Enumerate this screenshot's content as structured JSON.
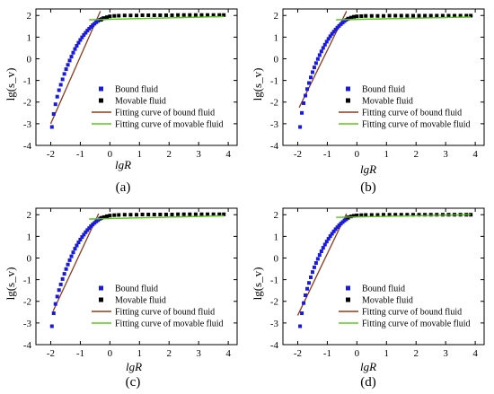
{
  "chart_data": [
    {
      "panel": "(a)",
      "type": "scatter",
      "xlabel": "lgR",
      "ylabel": "lg(s_v)",
      "xlim": [
        -2.5,
        4.3
      ],
      "ylim": [
        -4,
        2.3
      ],
      "x_ticks": [
        "-2",
        "-1",
        "0",
        "1",
        "2",
        "3",
        "4"
      ],
      "y_ticks": [
        "-4",
        "-3",
        "-2",
        "-1",
        "0",
        "1",
        "2"
      ],
      "legend_position": "lower-right",
      "series": [
        {
          "name": "Bound fluid",
          "marker": "square",
          "color": "#1a1adb",
          "x": [
            -1.96,
            -1.9,
            -1.84,
            -1.78,
            -1.72,
            -1.66,
            -1.6,
            -1.54,
            -1.48,
            -1.42,
            -1.36,
            -1.3,
            -1.24,
            -1.18,
            -1.12,
            -1.06,
            -1.0,
            -0.94,
            -0.88,
            -0.82,
            -0.76,
            -0.7,
            -0.64,
            -0.58,
            -0.52,
            -0.46,
            -0.4,
            -0.34,
            -0.28,
            -0.22
          ],
          "y": [
            -3.15,
            -2.55,
            -2.1,
            -1.75,
            -1.45,
            -1.2,
            -0.95,
            -0.7,
            -0.48,
            -0.28,
            -0.08,
            0.1,
            0.28,
            0.45,
            0.6,
            0.74,
            0.87,
            0.99,
            1.1,
            1.2,
            1.3,
            1.39,
            1.47,
            1.55,
            1.62,
            1.69,
            1.75,
            1.8,
            1.84,
            1.88
          ]
        },
        {
          "name": "Movable fluid",
          "marker": "square",
          "color": "#000000",
          "x": [
            -0.3,
            -0.2,
            -0.1,
            0.0,
            0.15,
            0.3,
            0.5,
            0.7,
            0.9,
            1.1,
            1.3,
            1.5,
            1.7,
            1.9,
            2.1,
            2.3,
            2.5,
            2.7,
            2.9,
            3.1,
            3.3,
            3.5,
            3.7,
            3.85
          ],
          "y": [
            1.8,
            1.87,
            1.92,
            1.96,
            1.98,
            1.99,
            2.0,
            2.0,
            2.0,
            2.01,
            2.01,
            2.01,
            2.01,
            2.01,
            2.01,
            2.02,
            2.02,
            2.02,
            2.02,
            2.02,
            2.02,
            2.02,
            2.02,
            2.02
          ]
        },
        {
          "name": "Fitting curve of bound fluid",
          "type": "line",
          "color": "#8b3a1a",
          "x": [
            -2.0,
            -0.32
          ],
          "y": [
            -3.0,
            2.2
          ]
        },
        {
          "name": "Fitting curve of movable fluid",
          "type": "line",
          "color": "#5ec81f",
          "x": [
            -0.7,
            3.85
          ],
          "y": [
            1.8,
            1.95
          ]
        }
      ]
    },
    {
      "panel": "(b)",
      "type": "scatter",
      "xlabel": "lgR",
      "ylabel": "lg(s_v)",
      "xlim": [
        -2.5,
        4.3
      ],
      "ylim": [
        -4,
        2.3
      ],
      "x_ticks": [
        "-2",
        "-1",
        "0",
        "1",
        "2",
        "3",
        "4"
      ],
      "y_ticks": [
        "-4",
        "-3",
        "-2",
        "-1",
        "0",
        "1",
        "2"
      ],
      "legend_position": "lower-right",
      "series": [
        {
          "name": "Bound fluid",
          "marker": "square",
          "color": "#1a1adb",
          "x": [
            -1.92,
            -1.86,
            -1.8,
            -1.74,
            -1.68,
            -1.62,
            -1.56,
            -1.5,
            -1.44,
            -1.38,
            -1.32,
            -1.26,
            -1.2,
            -1.14,
            -1.08,
            -1.02,
            -0.96,
            -0.9,
            -0.84,
            -0.78,
            -0.72,
            -0.66,
            -0.6,
            -0.54,
            -0.48,
            -0.42,
            -0.36,
            -0.3
          ],
          "y": [
            -3.15,
            -2.5,
            -2.05,
            -1.7,
            -1.4,
            -1.12,
            -0.86,
            -0.62,
            -0.4,
            -0.2,
            -0.01,
            0.17,
            0.34,
            0.5,
            0.65,
            0.79,
            0.92,
            1.04,
            1.15,
            1.25,
            1.35,
            1.44,
            1.52,
            1.6,
            1.67,
            1.74,
            1.8,
            1.85
          ]
        },
        {
          "name": "Movable fluid",
          "marker": "square",
          "color": "#000000",
          "x": [
            -0.3,
            -0.2,
            -0.1,
            0.0,
            0.15,
            0.3,
            0.5,
            0.7,
            0.9,
            1.1,
            1.3,
            1.5,
            1.7,
            1.9,
            2.1,
            2.3,
            2.5,
            2.7,
            2.9,
            3.1,
            3.3,
            3.5,
            3.7,
            3.85
          ],
          "y": [
            1.85,
            1.9,
            1.94,
            1.96,
            1.97,
            1.98,
            1.98,
            1.98,
            1.98,
            1.99,
            1.99,
            1.99,
            1.99,
            1.99,
            1.99,
            1.99,
            1.99,
            1.99,
            1.99,
            1.99,
            1.99,
            1.99,
            1.99,
            1.99
          ]
        },
        {
          "name": "Fitting curve of bound fluid",
          "type": "line",
          "color": "#8b3a1a",
          "x": [
            -1.95,
            -0.35
          ],
          "y": [
            -2.25,
            2.2
          ]
        },
        {
          "name": "Fitting curve of movable fluid",
          "type": "line",
          "color": "#5ec81f",
          "x": [
            -0.7,
            3.85
          ],
          "y": [
            1.8,
            1.93
          ]
        }
      ]
    },
    {
      "panel": "(c)",
      "type": "scatter",
      "xlabel": "lgR",
      "ylabel": "lg(s_v)",
      "xlim": [
        -2.5,
        4.3
      ],
      "ylim": [
        -4,
        2.3
      ],
      "x_ticks": [
        "-2",
        "-1",
        "0",
        "1",
        "2",
        "3",
        "4"
      ],
      "y_ticks": [
        "-4",
        "-3",
        "-2",
        "-1",
        "0",
        "1",
        "2"
      ],
      "legend_position": "lower-right",
      "series": [
        {
          "name": "Bound fluid",
          "marker": "square",
          "color": "#1a1adb",
          "x": [
            -1.96,
            -1.9,
            -1.84,
            -1.78,
            -1.72,
            -1.66,
            -1.6,
            -1.54,
            -1.48,
            -1.42,
            -1.36,
            -1.3,
            -1.24,
            -1.18,
            -1.12,
            -1.06,
            -1.0,
            -0.94,
            -0.88,
            -0.82,
            -0.76,
            -0.7,
            -0.64,
            -0.58,
            -0.52,
            -0.46,
            -0.4,
            -0.34,
            -0.28
          ],
          "y": [
            -3.15,
            -2.55,
            -2.12,
            -1.78,
            -1.48,
            -1.22,
            -0.97,
            -0.73,
            -0.51,
            -0.3,
            -0.1,
            0.08,
            0.26,
            0.43,
            0.58,
            0.72,
            0.85,
            0.97,
            1.08,
            1.19,
            1.29,
            1.38,
            1.47,
            1.55,
            1.62,
            1.69,
            1.75,
            1.81,
            1.86
          ]
        },
        {
          "name": "Movable fluid",
          "marker": "square",
          "color": "#000000",
          "x": [
            -0.3,
            -0.2,
            -0.1,
            0.0,
            0.15,
            0.3,
            0.5,
            0.7,
            0.9,
            1.1,
            1.3,
            1.5,
            1.7,
            1.9,
            2.1,
            2.3,
            2.5,
            2.7,
            2.9,
            3.1,
            3.3,
            3.5,
            3.7,
            3.85
          ],
          "y": [
            1.84,
            1.89,
            1.93,
            1.96,
            1.98,
            1.99,
            2.0,
            2.0,
            2.0,
            2.01,
            2.01,
            2.01,
            2.01,
            2.01,
            2.01,
            2.02,
            2.02,
            2.02,
            2.02,
            2.02,
            2.02,
            2.02,
            2.02,
            2.02
          ]
        },
        {
          "name": "Fitting curve of bound fluid",
          "type": "line",
          "color": "#8b3a1a",
          "x": [
            -1.92,
            -0.38
          ],
          "y": [
            -2.45,
            2.05
          ]
        },
        {
          "name": "Fitting curve of movable fluid",
          "type": "line",
          "color": "#5ec81f",
          "x": [
            -0.7,
            3.85
          ],
          "y": [
            1.8,
            1.95
          ]
        }
      ]
    },
    {
      "panel": "(d)",
      "type": "scatter",
      "xlabel": "lgR",
      "ylabel": "lg(s_v)",
      "xlim": [
        -2.5,
        4.3
      ],
      "ylim": [
        -4,
        2.3
      ],
      "x_ticks": [
        "-2",
        "-1",
        "0",
        "1",
        "2",
        "3",
        "4"
      ],
      "y_ticks": [
        "-4",
        "-3",
        "-2",
        "-1",
        "0",
        "1",
        "2"
      ],
      "legend_position": "lower-right",
      "series": [
        {
          "name": "Bound fluid",
          "marker": "square",
          "color": "#1a1adb",
          "x": [
            -1.92,
            -1.86,
            -1.8,
            -1.74,
            -1.68,
            -1.62,
            -1.56,
            -1.5,
            -1.44,
            -1.38,
            -1.32,
            -1.26,
            -1.2,
            -1.14,
            -1.08,
            -1.02,
            -0.96,
            -0.9,
            -0.84,
            -0.78,
            -0.72,
            -0.66,
            -0.6,
            -0.54,
            -0.48,
            -0.42,
            -0.36,
            -0.3
          ],
          "y": [
            -3.15,
            -2.55,
            -2.08,
            -1.72,
            -1.42,
            -1.15,
            -0.89,
            -0.65,
            -0.43,
            -0.23,
            -0.04,
            0.14,
            0.31,
            0.47,
            0.62,
            0.76,
            0.89,
            1.01,
            1.12,
            1.23,
            1.33,
            1.42,
            1.51,
            1.59,
            1.66,
            1.73,
            1.79,
            1.85
          ]
        },
        {
          "name": "Movable fluid",
          "marker": "square",
          "color": "#000000",
          "x": [
            -0.3,
            -0.2,
            -0.1,
            0.0,
            0.15,
            0.3,
            0.5,
            0.7,
            0.9,
            1.1,
            1.3,
            1.5,
            1.7,
            1.9,
            2.1,
            2.3,
            2.5,
            2.7,
            2.9,
            3.1,
            3.3,
            3.5,
            3.7,
            3.85
          ],
          "y": [
            1.88,
            1.92,
            1.95,
            1.97,
            1.98,
            1.99,
            1.99,
            1.99,
            2.0,
            2.0,
            2.0,
            2.0,
            2.0,
            2.0,
            2.0,
            2.0,
            2.0,
            2.0,
            2.0,
            2.0,
            2.0,
            2.0,
            2.0,
            2.0
          ]
        },
        {
          "name": "Fitting curve of bound fluid",
          "type": "line",
          "color": "#8b3a1a",
          "x": [
            -2.0,
            -0.35
          ],
          "y": [
            -2.65,
            2.05
          ]
        },
        {
          "name": "Fitting curve of movable fluid",
          "type": "line",
          "color": "#5ec81f",
          "x": [
            -0.7,
            3.85
          ],
          "y": [
            1.88,
            2.0
          ]
        }
      ]
    }
  ]
}
